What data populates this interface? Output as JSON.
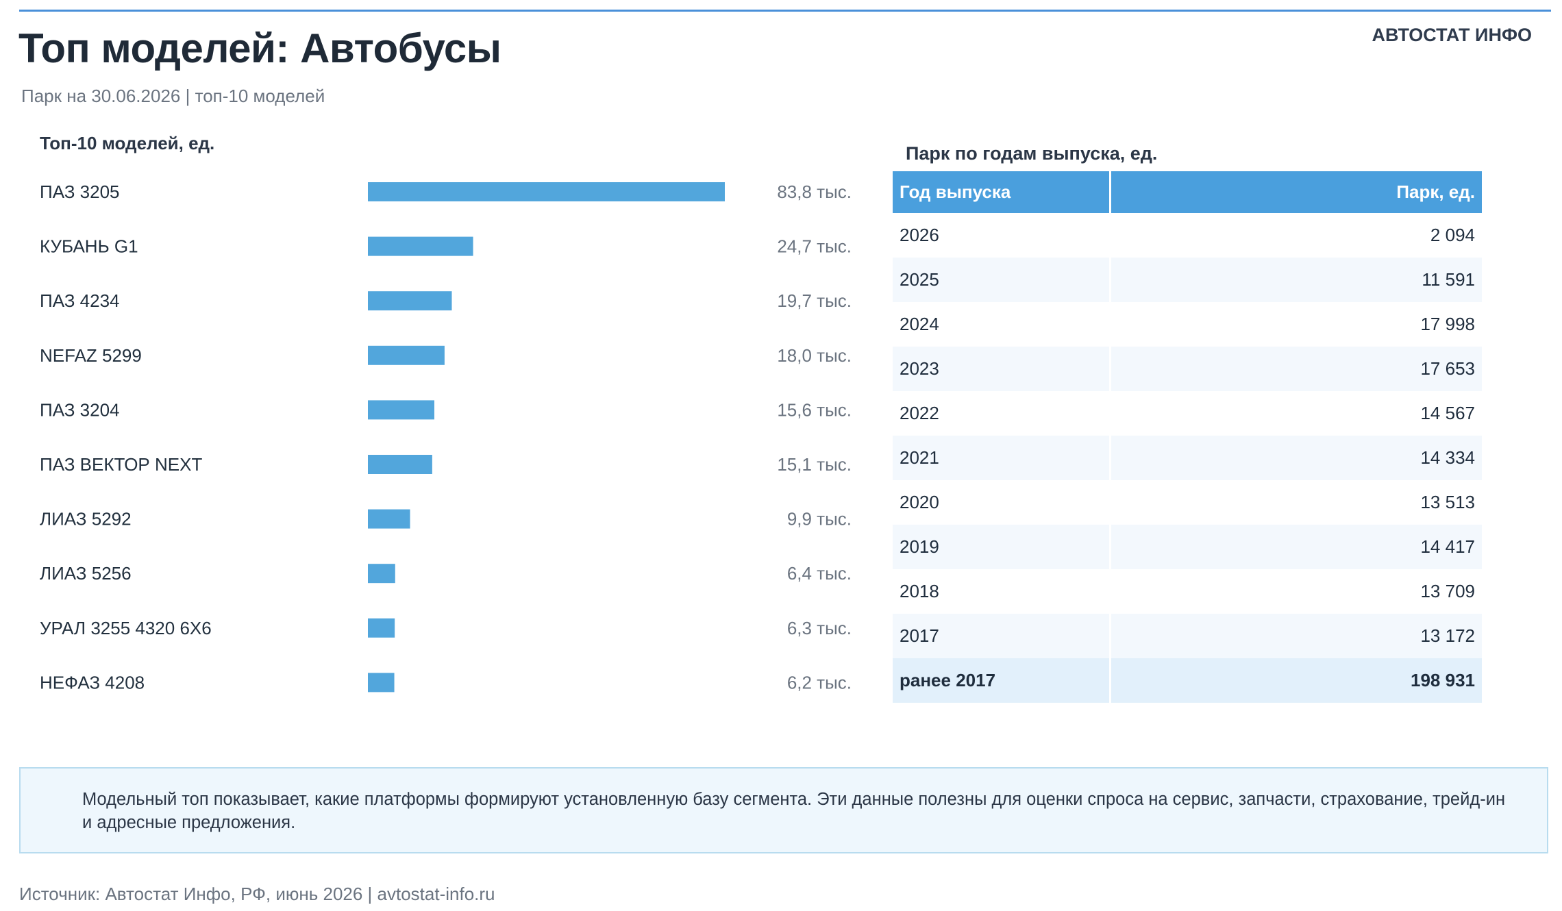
{
  "header": {
    "title": "Топ моделей: Автобусы",
    "brand": "АВТОСТАТ ИНФО",
    "subtitle": "Парк на 30.06.2026 | топ-10 моделей"
  },
  "colors": {
    "accent": "#4a90d9",
    "bar": "#52a6dc",
    "table_header": "#4a9fdd",
    "note_bg": "#eef7fd"
  },
  "chart_data": [
    {
      "type": "bar",
      "orientation": "horizontal",
      "title": "Топ-10 моделей, ед.",
      "categories": [
        "ПАЗ 3205",
        "КУБАНЬ G1",
        "ПАЗ 4234",
        "NEFAZ 5299",
        "ПАЗ 3204",
        "ПАЗ ВЕКТОР NEXT",
        "ЛИАЗ 5292",
        "ЛИАЗ 5256",
        "УРАЛ 3255 4320 6Х6",
        "НЕФАЗ 4208"
      ],
      "values": [
        83800,
        24700,
        19700,
        18000,
        15600,
        15100,
        9900,
        6400,
        6300,
        6200
      ],
      "value_labels": [
        "83,8 тыс.",
        "24,7 тыс.",
        "19,7 тыс.",
        "18,0 тыс.",
        "15,6 тыс.",
        "15,1 тыс.",
        "9,9 тыс.",
        "6,4 тыс.",
        "6,3 тыс.",
        "6,2 тыс."
      ],
      "xlim": [
        0,
        83800
      ],
      "grid": false
    },
    {
      "type": "table",
      "title": "Парк по годам выпуска, ед.",
      "columns": [
        "Год выпуска",
        "Парк, ед."
      ],
      "rows": [
        [
          "2026",
          "2 094"
        ],
        [
          "2025",
          "11 591"
        ],
        [
          "2024",
          "17 998"
        ],
        [
          "2023",
          "17 653"
        ],
        [
          "2022",
          "14 567"
        ],
        [
          "2021",
          "14 334"
        ],
        [
          "2020",
          "13 513"
        ],
        [
          "2019",
          "14 417"
        ],
        [
          "2018",
          "13 709"
        ],
        [
          "2017",
          "13 172"
        ],
        [
          "ранее 2017",
          "198 931"
        ]
      ]
    }
  ],
  "note": "Модельный топ показывает, какие платформы формируют установленную базу сегмента. Эти данные полезны для оценки спроса на сервис, запчасти, страхование, трейд-ин и адресные предложения.",
  "source": "Источник: Автостат Инфо, РФ, июнь 2026 | avtostat-info.ru"
}
